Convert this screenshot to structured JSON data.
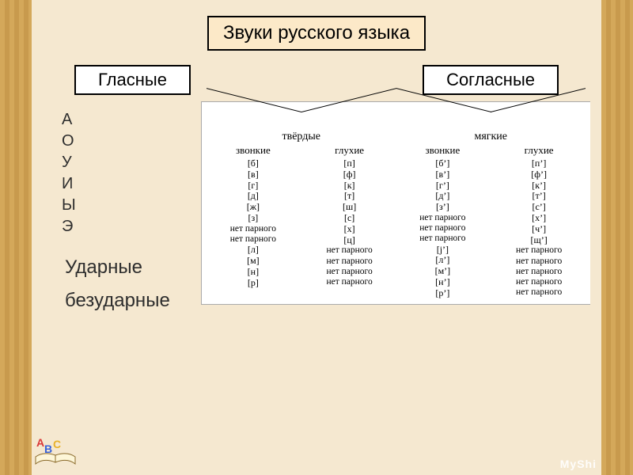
{
  "colors": {
    "page_bg": "#f5e8d0",
    "stripe_a": "#d4a85a",
    "stripe_b": "#c89a4d",
    "title_bg": "#fce9c8",
    "panel_bg": "#ffffff",
    "border": "#000000"
  },
  "title": "Звуки русского языка",
  "branches": {
    "vowels": "Гласные",
    "consonants": "Согласные"
  },
  "vowels": {
    "list": [
      "А",
      "О",
      "У",
      "И",
      "Ы",
      "Э"
    ],
    "stressed": "Ударные",
    "unstressed": "безударные"
  },
  "consonants": {
    "hard_label": "твёрдые",
    "soft_label": "мягкие",
    "voiced_label": "звонкие",
    "voiceless_label": "глухие",
    "no_pair": "нет парного",
    "hard": {
      "voiced": [
        "[б]",
        "[в]",
        "[г]",
        "[д]",
        "[ж]",
        "[з]"
      ],
      "voiceless": [
        "[п]",
        "[ф]",
        "[к]",
        "[т]",
        "[ш]",
        "[с]",
        "[х]",
        "[ц]"
      ],
      "voiced_tail": [
        "[л]",
        "[м]",
        "[н]",
        "[р]"
      ],
      "voiced_nopair_count": 2,
      "voiceless_nopair_count": 4
    },
    "soft": {
      "voiced": [
        "[б’]",
        "[в’]",
        "[г’]",
        "[д’]",
        "[з’]"
      ],
      "voiceless": [
        "[п’]",
        "[ф’]",
        "[к’]",
        "[т’]",
        "[с’]",
        "[х’]",
        "[ч’]",
        "[щ’]"
      ],
      "voiced_tail": [
        "[j’]",
        "[л’]",
        "[м’]",
        "[н’]",
        "[р’]"
      ],
      "voiced_nopair_count": 3,
      "voiceless_nopair_count": 5
    }
  },
  "watermark": "MyShi"
}
